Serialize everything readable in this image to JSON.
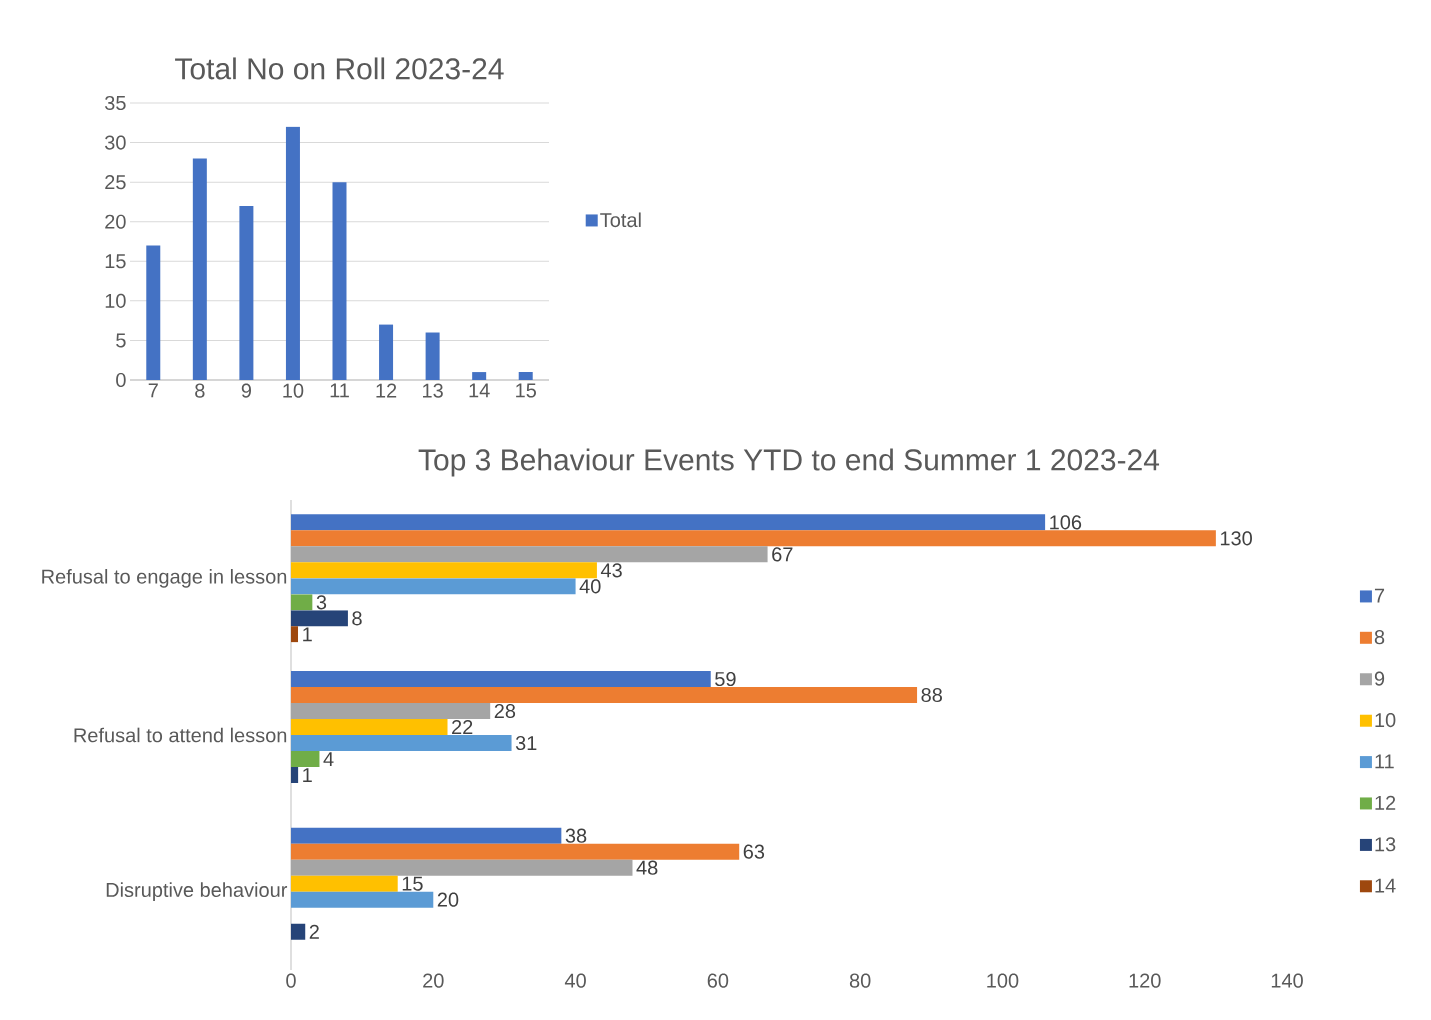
{
  "chart_data": [
    {
      "type": "bar",
      "title": "Total No on Roll 2023-24",
      "categories": [
        "7",
        "8",
        "9",
        "10",
        "11",
        "12",
        "13",
        "14",
        "15"
      ],
      "series": [
        {
          "name": "Total",
          "color": "#4472c4",
          "values": [
            17,
            28,
            22,
            32,
            25,
            7,
            6,
            1,
            1
          ]
        }
      ],
      "ylim": [
        0,
        35
      ],
      "yticks": [
        0,
        5,
        10,
        15,
        20,
        25,
        30,
        35
      ],
      "grid": "y",
      "legend": "right"
    },
    {
      "type": "bar",
      "orientation": "horizontal",
      "title": "Top 3 Behaviour Events YTD to end Summer 1 2023-24",
      "categories": [
        "Refusal to engage in lesson",
        "Refusal to attend lesson",
        "Disruptive behaviour"
      ],
      "series": [
        {
          "name": "7",
          "color": "#4472c4",
          "values": [
            106,
            59,
            38
          ]
        },
        {
          "name": "8",
          "color": "#ed7d31",
          "values": [
            130,
            88,
            63
          ]
        },
        {
          "name": "9",
          "color": "#a5a5a5",
          "values": [
            67,
            28,
            48
          ]
        },
        {
          "name": "10",
          "color": "#ffc000",
          "values": [
            43,
            22,
            15
          ]
        },
        {
          "name": "11",
          "color": "#5b9bd5",
          "values": [
            40,
            31,
            20
          ]
        },
        {
          "name": "12",
          "color": "#70ad47",
          "values": [
            3,
            4,
            null
          ]
        },
        {
          "name": "13",
          "color": "#264478",
          "values": [
            8,
            1,
            2
          ]
        },
        {
          "name": "14",
          "color": "#9e480e",
          "values": [
            1,
            null,
            null
          ]
        }
      ],
      "xlim": [
        0,
        140
      ],
      "xticks": [
        0,
        20,
        40,
        60,
        80,
        100,
        120,
        140
      ],
      "data_labels": true,
      "legend": "right"
    }
  ]
}
